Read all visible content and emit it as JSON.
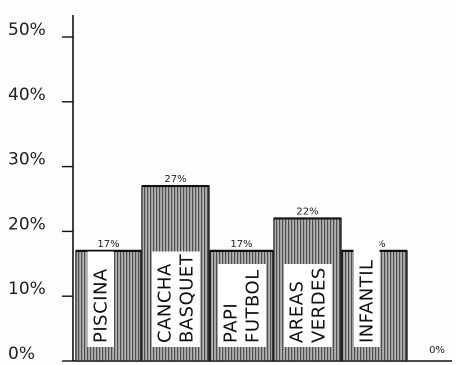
{
  "chart_data": {
    "type": "bar",
    "categories": [
      [
        "PISCINA"
      ],
      [
        "CANCHA",
        "BASQUET"
      ],
      [
        "PAPI",
        "FUTBOL"
      ],
      [
        "AREAS",
        "VERDES"
      ],
      [
        "INFANTIL"
      ],
      []
    ],
    "values": [
      17,
      27,
      17,
      22,
      17,
      0
    ],
    "data_labels": [
      "17%",
      "27%",
      "17%",
      "22%",
      "17%",
      "0%"
    ],
    "yticks": [
      "0%",
      "10%",
      "20%",
      "30%",
      "40%",
      "50%"
    ],
    "ylim": [
      0,
      50
    ],
    "grid": false,
    "bar_style": "vertical-hatched",
    "colors": {
      "bar_fill": "#ffffff",
      "hatch": "#222222",
      "label_box": "#ffffff",
      "axis": "#111111"
    }
  }
}
